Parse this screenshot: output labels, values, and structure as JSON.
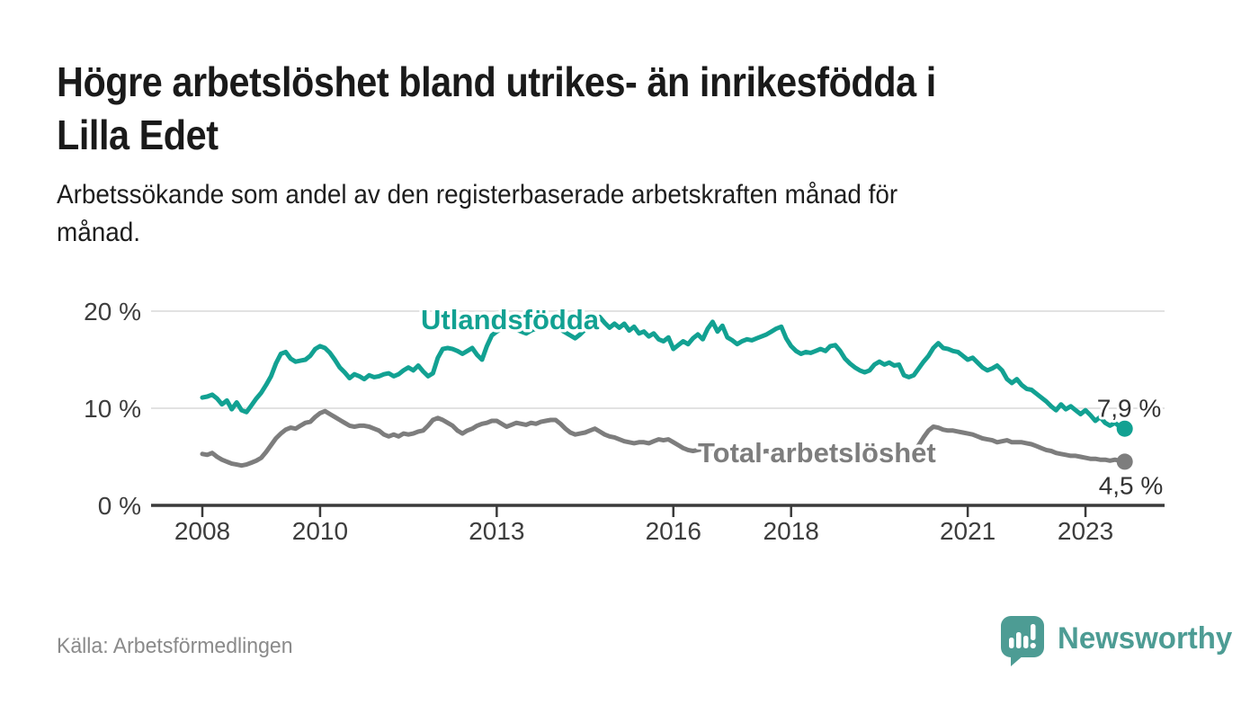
{
  "header": {
    "title_lines": [
      "Högre arbetslöshet bland utrikes- än inrikesfödda i",
      "Lilla Edet"
    ],
    "subtitle_lines": [
      "Arbetssökande som andel av den registerbaserade arbetskraften månad för",
      "månad."
    ]
  },
  "footer": {
    "source": "Källa: Arbetsförmedlingen",
    "brand": "Newsworthy",
    "brand_color": "#4d9c94"
  },
  "chart_data": {
    "type": "line",
    "frequency": "monthly",
    "x_start_year": 2008,
    "x_start_month": 1,
    "x_end_label": "2023-09",
    "y_unit": "%",
    "ylim": [
      0,
      21.5
    ],
    "grid": "horizontal",
    "legend_position": "inline-labels",
    "y_ticks": [
      {
        "label": "0 %",
        "value": 0
      },
      {
        "label": "10 %",
        "value": 10
      },
      {
        "label": "20 %",
        "value": 20
      }
    ],
    "x_ticks": [
      {
        "label": "2008",
        "year": 2008
      },
      {
        "label": "2010",
        "year": 2010
      },
      {
        "label": "2013",
        "year": 2013
      },
      {
        "label": "2016",
        "year": 2016
      },
      {
        "label": "2018",
        "year": 2018
      },
      {
        "label": "2021",
        "year": 2021
      },
      {
        "label": "2023",
        "year": 2023
      }
    ],
    "style": {
      "axis_color": "#3a3a3a",
      "grid_color": "#d8d8d8",
      "tick_text_color": "#3d3d3d",
      "end_label_color": "#333333"
    },
    "series": [
      {
        "name": "Utlandsfödda",
        "color": "#12a192",
        "end_label": "7,9 %",
        "end_value": 7.9,
        "values": [
          11.1,
          11.2,
          11.4,
          11.0,
          10.4,
          10.8,
          9.9,
          10.6,
          9.8,
          9.6,
          10.3,
          11.0,
          11.6,
          12.4,
          13.3,
          14.6,
          15.6,
          15.8,
          15.1,
          14.8,
          14.9,
          15.0,
          15.4,
          16.1,
          16.4,
          16.2,
          15.7,
          15.0,
          14.2,
          13.7,
          13.1,
          13.5,
          13.3,
          13.0,
          13.4,
          13.2,
          13.3,
          13.5,
          13.6,
          13.3,
          13.5,
          13.9,
          14.2,
          13.9,
          14.4,
          13.8,
          13.3,
          13.6,
          15.2,
          16.1,
          16.2,
          16.1,
          15.9,
          15.6,
          15.9,
          16.2,
          15.5,
          15.0,
          16.4,
          17.5,
          17.9,
          18.2,
          18.4,
          18.3,
          18.1,
          17.9,
          17.7,
          18.0,
          18.2,
          18.1,
          18.3,
          18.4,
          18.3,
          18.1,
          17.8,
          17.5,
          17.2,
          17.6,
          18.1,
          18.6,
          19.1,
          19.4,
          18.8,
          18.3,
          18.7,
          18.3,
          18.7,
          18.0,
          18.4,
          17.7,
          17.9,
          17.4,
          17.7,
          17.1,
          16.9,
          17.3,
          16.1,
          16.5,
          16.9,
          16.6,
          17.2,
          17.6,
          17.1,
          18.2,
          18.9,
          17.9,
          18.5,
          17.3,
          17.0,
          16.6,
          16.9,
          17.1,
          17.0,
          17.2,
          17.4,
          17.6,
          17.9,
          18.2,
          18.4,
          17.2,
          16.4,
          15.9,
          15.6,
          15.8,
          15.7,
          15.9,
          16.1,
          15.9,
          16.4,
          16.5,
          15.9,
          15.1,
          14.6,
          14.2,
          13.9,
          13.7,
          13.9,
          14.5,
          14.8,
          14.5,
          14.7,
          14.4,
          14.5,
          13.4,
          13.2,
          13.4,
          14.1,
          14.8,
          15.4,
          16.2,
          16.7,
          16.2,
          16.1,
          15.9,
          15.8,
          15.4,
          15.0,
          15.2,
          14.7,
          14.2,
          13.9,
          14.1,
          14.4,
          13.9,
          13.0,
          12.6,
          13.0,
          12.4,
          12.0,
          11.9,
          11.5,
          11.1,
          10.7,
          10.2,
          9.8,
          10.4,
          9.9,
          10.2,
          9.8,
          9.4,
          9.8,
          9.3,
          8.7,
          9.1,
          8.5,
          8.2,
          8.5,
          8.1,
          7.9
        ]
      },
      {
        "name": "Total arbetslöshet",
        "color": "#7d7d7d",
        "end_label": "4,5 %",
        "end_value": 4.5,
        "values": [
          5.3,
          5.2,
          5.4,
          5.0,
          4.7,
          4.5,
          4.3,
          4.2,
          4.1,
          4.2,
          4.4,
          4.6,
          4.9,
          5.5,
          6.2,
          6.9,
          7.4,
          7.8,
          8.0,
          7.9,
          8.2,
          8.5,
          8.6,
          9.1,
          9.5,
          9.7,
          9.4,
          9.1,
          8.8,
          8.5,
          8.2,
          8.1,
          8.2,
          8.2,
          8.1,
          7.9,
          7.7,
          7.3,
          7.1,
          7.3,
          7.1,
          7.4,
          7.3,
          7.4,
          7.6,
          7.7,
          8.2,
          8.8,
          9.0,
          8.8,
          8.5,
          8.2,
          7.7,
          7.4,
          7.7,
          7.9,
          8.2,
          8.4,
          8.5,
          8.7,
          8.7,
          8.4,
          8.1,
          8.3,
          8.5,
          8.4,
          8.3,
          8.5,
          8.4,
          8.6,
          8.7,
          8.8,
          8.8,
          8.4,
          7.9,
          7.5,
          7.3,
          7.4,
          7.5,
          7.7,
          7.9,
          7.6,
          7.3,
          7.1,
          7.0,
          6.8,
          6.6,
          6.5,
          6.4,
          6.5,
          6.5,
          6.4,
          6.6,
          6.8,
          6.7,
          6.8,
          6.5,
          6.2,
          5.9,
          5.7,
          5.6,
          5.7,
          5.8,
          5.7,
          5.8,
          5.7,
          5.6,
          5.7,
          5.7,
          5.6,
          5.5,
          5.6,
          5.5,
          5.4,
          5.5,
          5.6,
          5.5,
          5.6,
          5.5,
          5.6,
          5.6,
          5.5,
          5.4,
          5.5,
          5.4,
          5.3,
          5.4,
          5.5,
          5.4,
          5.3,
          5.4,
          5.3,
          5.3,
          5.2,
          5.3,
          5.2,
          5.1,
          5.2,
          5.3,
          5.2,
          5.3,
          5.2,
          5.3,
          5.4,
          5.4,
          5.6,
          6.2,
          7.0,
          7.7,
          8.1,
          8.0,
          7.8,
          7.7,
          7.7,
          7.6,
          7.5,
          7.4,
          7.3,
          7.1,
          6.9,
          6.8,
          6.7,
          6.5,
          6.6,
          6.7,
          6.5,
          6.5,
          6.5,
          6.4,
          6.3,
          6.1,
          5.9,
          5.7,
          5.6,
          5.4,
          5.3,
          5.2,
          5.1,
          5.1,
          5.0,
          4.9,
          4.8,
          4.8,
          4.7,
          4.7,
          4.6,
          4.7,
          4.6,
          4.5
        ]
      }
    ]
  }
}
